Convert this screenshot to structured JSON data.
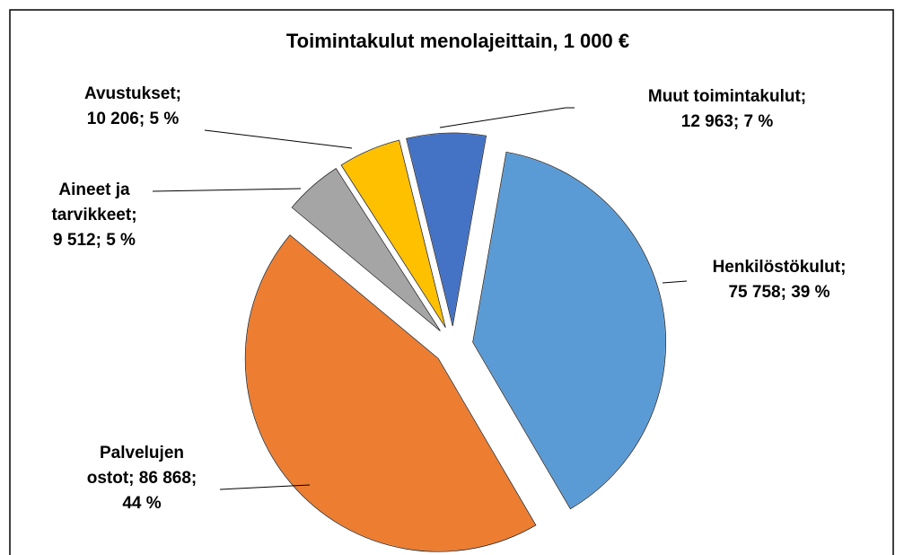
{
  "chart_data": {
    "type": "pie",
    "title": "Toimintakulut menolajeittain, 1 000 €",
    "values": [
      75758,
      86868,
      9512,
      10206,
      12963
    ],
    "value_labels": [
      [
        "Henkilöstökulut;",
        "75 758; 39 %"
      ],
      [
        "Palvelujen",
        "ostot; 86 868;",
        "44 %"
      ],
      [
        "Aineet ja",
        "tarvikkeet;",
        "9 512; 5 %"
      ],
      [
        "Avustukset;",
        "10 206; 5 %"
      ],
      [
        "Muut toimintakulut;",
        "12 963; 7 %"
      ]
    ],
    "colors": [
      "#5b9bd5",
      "#ed7d31",
      "#a5a5a5",
      "#ffc000",
      "#4472c4"
    ],
    "start_angle": 10
  }
}
